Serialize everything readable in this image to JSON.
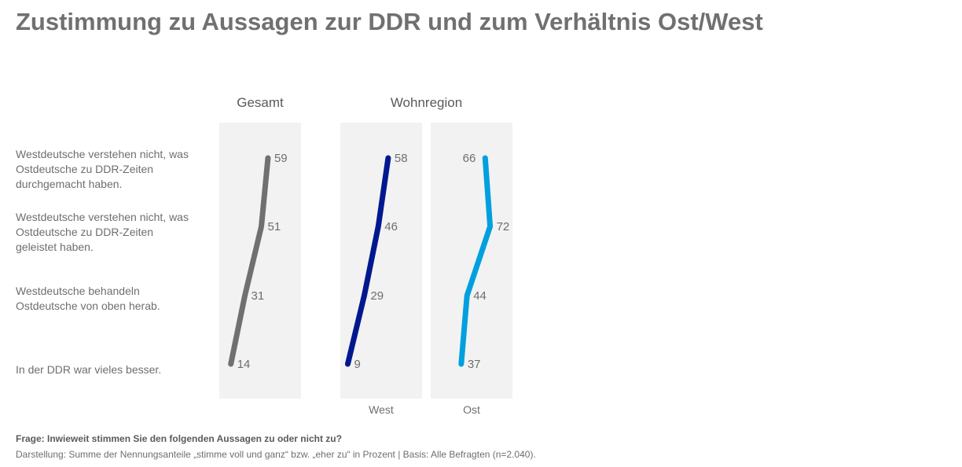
{
  "chart_data": {
    "type": "line",
    "title": "Zustimmung zu Aussagen zur DDR und zum Verhältnis Ost/West",
    "categories": [
      "Westdeutsche verstehen nicht, was Ostdeutsche zu DDR-Zeiten durchgemacht haben.",
      "Westdeutsche verstehen nicht, was Ostdeutsche zu DDR-Zeiten geleistet haben.",
      "Westdeutsche behandeln Ostdeutsche von oben herab.",
      "In der DDR war vieles besser."
    ],
    "category_lines": [
      [
        "Westdeutsche verstehen nicht, was",
        "Ostdeutsche zu DDR-Zeiten",
        "durchgemacht haben."
      ],
      [
        "Westdeutsche verstehen nicht, was",
        "Ostdeutsche zu DDR-Zeiten",
        "geleistet haben."
      ],
      [
        "Westdeutsche behandeln",
        "Ostdeutsche von oben herab."
      ],
      [
        "In der DDR war vieles besser."
      ]
    ],
    "groups": [
      {
        "label": "Gesamt",
        "series_indices": [
          0
        ]
      },
      {
        "label": "Wohnregion",
        "series_indices": [
          1,
          2
        ]
      }
    ],
    "series": [
      {
        "name": "Gesamt",
        "sublabel": "",
        "color": "#707070",
        "values": [
          59,
          51,
          31,
          14
        ],
        "label_side": [
          "right",
          "right",
          "right",
          "right"
        ]
      },
      {
        "name": "West",
        "sublabel": "West",
        "color": "#00188f",
        "values": [
          58,
          46,
          29,
          9
        ],
        "label_side": [
          "right",
          "right",
          "right",
          "right"
        ]
      },
      {
        "name": "Ost",
        "sublabel": "Ost",
        "color": "#00a0de",
        "values": [
          66,
          72,
          44,
          37
        ],
        "label_side": [
          "left",
          "right",
          "right",
          "right"
        ]
      }
    ],
    "unit": "Prozent",
    "xlim": [
      0,
      100
    ],
    "grid": false,
    "panel_background": "#f2f2f2"
  },
  "footer": {
    "question": "Frage: Inwieweit stimmen Sie den folgenden Aussagen zu oder nicht zu?",
    "note": "Darstellung: Summe der Nennungsanteile „stimme voll und ganz“ bzw. „eher zu“ in Prozent | Basis: Alle Befragten (n=2.040)."
  }
}
